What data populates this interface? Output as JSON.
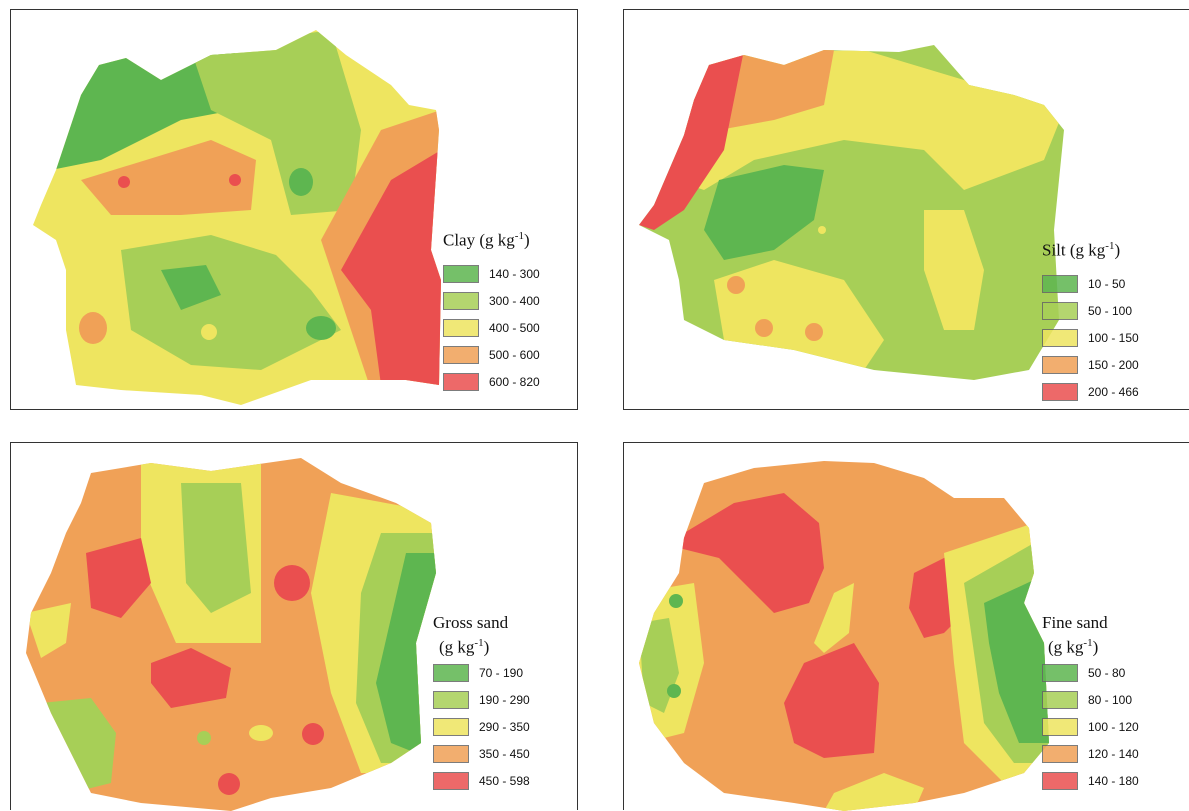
{
  "colors": {
    "class1": "#5eb650",
    "class2": "#a7cf57",
    "class3": "#eee560",
    "class4": "#f0a157",
    "class5": "#ea4f4f"
  },
  "panels": [
    {
      "title": "Clay (g kg",
      "title_line2": "",
      "title_sup": "-1",
      "title_close": ")",
      "ranges": [
        "140 - 300",
        "300 - 400",
        "400 - 500",
        "500 - 600",
        "600 - 820"
      ]
    },
    {
      "title": "Silt (g kg",
      "title_line2": "",
      "title_sup": "-1",
      "title_close": ")",
      "ranges": [
        "10 - 50",
        "50 - 100",
        "100 - 150",
        "150 - 200",
        "200 - 466"
      ]
    },
    {
      "title": "Gross sand",
      "title_line2": "(g kg",
      "title_sup": "-1",
      "title_close": ")",
      "ranges": [
        "70 - 190",
        "190 - 290",
        "290 - 350",
        "350 - 450",
        "450 - 598"
      ]
    },
    {
      "title": "Fine sand",
      "title_line2": "(g kg",
      "title_sup": "-1",
      "title_close": ")",
      "ranges": [
        "50 - 80",
        "80 - 100",
        "100 - 120",
        "120 - 140",
        "140 - 180"
      ]
    }
  ]
}
